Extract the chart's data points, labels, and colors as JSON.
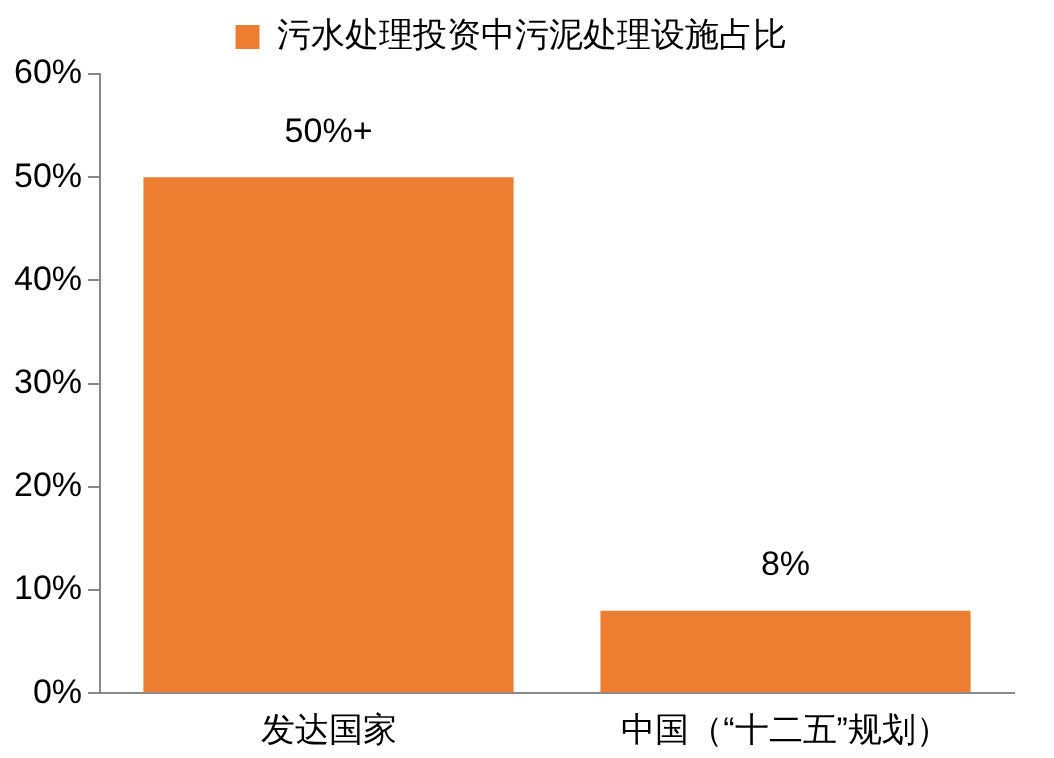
{
  "chart_data": {
    "type": "bar",
    "categories": [
      "发达国家",
      "中国（“十二五”规划）"
    ],
    "series": [
      {
        "name": "污水处理投资中污泥处理设施占比",
        "color": "#ed7d31",
        "values": [
          50,
          8
        ],
        "value_labels": [
          "50%+",
          "8%"
        ]
      }
    ],
    "ylim": [
      0,
      60
    ],
    "yticks": [
      {
        "value": 0,
        "label": "0%"
      },
      {
        "value": 10,
        "label": "10%"
      },
      {
        "value": 20,
        "label": "20%"
      },
      {
        "value": 30,
        "label": "30%"
      },
      {
        "value": 40,
        "label": "40%"
      },
      {
        "value": 50,
        "label": "50%"
      },
      {
        "value": 60,
        "label": "60%"
      }
    ],
    "grid": false,
    "legend": "top"
  }
}
